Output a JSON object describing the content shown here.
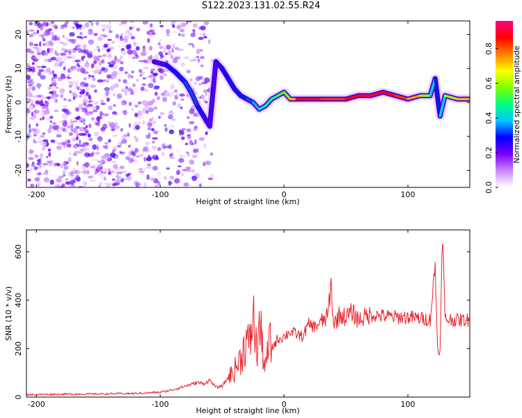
{
  "title": "S122.2023.131.02.55.R24",
  "chart_data": [
    {
      "type": "heatmap",
      "xlabel": "Height of straight line (km)",
      "ylabel": "Frequency (Hz)",
      "xlim": [
        -208,
        150
      ],
      "ylim": [
        -25,
        24
      ],
      "xticks": [
        -200,
        -100,
        0,
        100
      ],
      "yticks": [
        -20,
        -10,
        0,
        10,
        20
      ],
      "colorbar": {
        "label": "Normalized spectral amplitude",
        "range": [
          0,
          0.96
        ],
        "ticks": [
          "0.0",
          "0.2",
          "0.4",
          "0.6",
          "0.8"
        ],
        "ticks_values": [
          0.0,
          0.2,
          0.4,
          0.6,
          0.8
        ],
        "colors": [
          "#ffffff",
          "#cc88ff",
          "#7a00ff",
          "#0000ff",
          "#00c8ff",
          "#00ff80",
          "#80ff00",
          "#ffff00",
          "#ff8000",
          "#ff0000",
          "#ff0080"
        ]
      },
      "ridge": {
        "x": [
          -105,
          -95,
          -88,
          -80,
          -75,
          -70,
          -65,
          -60,
          -55,
          -50,
          -45,
          -40,
          -35,
          -30,
          -25,
          -20,
          -15,
          -10,
          -5,
          0,
          5,
          10,
          20,
          30,
          40,
          50,
          60,
          70,
          80,
          90,
          100,
          110,
          118,
          122,
          126,
          130,
          140,
          150
        ],
        "y": [
          12,
          11,
          9,
          6,
          3,
          -1,
          -4,
          -7,
          12,
          10,
          7,
          4,
          2,
          1,
          0,
          -2,
          -1,
          1,
          2,
          3,
          1,
          1,
          1,
          1,
          1,
          1,
          2,
          2,
          3,
          2,
          1,
          2,
          2,
          7,
          -4,
          2,
          1,
          1
        ]
      },
      "ridge_amplitude": [
        0.2,
        0.25,
        0.3,
        0.3,
        0.35,
        0.3,
        0.3,
        0.2,
        0.25,
        0.25,
        0.3,
        0.3,
        0.3,
        0.3,
        0.35,
        0.4,
        0.45,
        0.45,
        0.5,
        0.55,
        0.6,
        0.85,
        0.9,
        0.85,
        0.8,
        0.85,
        0.9,
        0.9,
        0.9,
        0.85,
        0.8,
        0.7,
        0.5,
        0.3,
        0.3,
        0.5,
        0.7,
        0.75
      ]
    },
    {
      "type": "line",
      "xlabel": "Height of straight line (km)",
      "ylabel": "SNR (10 * v/v)",
      "xlim": [
        -208,
        150
      ],
      "ylim": [
        0,
        690
      ],
      "xticks": [
        -200,
        -100,
        0,
        100
      ],
      "yticks": [
        0,
        200,
        400,
        600
      ],
      "color": "#e8202a",
      "x": [
        -208,
        -180,
        -150,
        -120,
        -100,
        -90,
        -80,
        -70,
        -65,
        -60,
        -55,
        -50,
        -45,
        -40,
        -35,
        -30,
        -28,
        -25,
        -22,
        -20,
        -18,
        -15,
        -12,
        -10,
        -5,
        0,
        5,
        10,
        15,
        20,
        25,
        30,
        35,
        38,
        40,
        45,
        50,
        55,
        60,
        65,
        70,
        80,
        90,
        100,
        110,
        118,
        122,
        124,
        126,
        128,
        130,
        135,
        140,
        150
      ],
      "y": [
        10,
        12,
        13,
        15,
        20,
        30,
        45,
        60,
        55,
        70,
        40,
        45,
        80,
        110,
        160,
        240,
        200,
        340,
        180,
        290,
        230,
        110,
        230,
        200,
        240,
        250,
        270,
        260,
        250,
        300,
        290,
        310,
        330,
        460,
        300,
        340,
        330,
        350,
        320,
        330,
        340,
        335,
        330,
        330,
        325,
        320,
        540,
        200,
        190,
        690,
        320,
        320,
        318,
        318
      ]
    }
  ]
}
